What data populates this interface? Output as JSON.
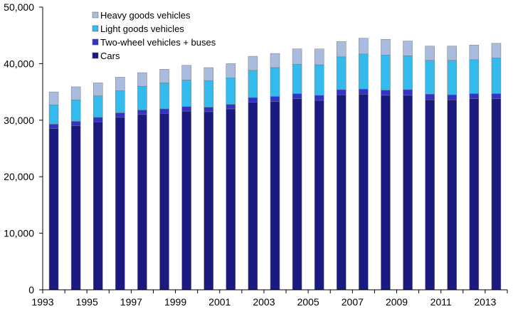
{
  "chart_data": {
    "type": "bar",
    "stacked": true,
    "title": "",
    "xlabel": "",
    "ylabel": "",
    "ylim": [
      0,
      50000
    ],
    "yticks": [
      0,
      10000,
      20000,
      30000,
      40000,
      50000
    ],
    "ytick_labels": [
      "0",
      "10,000",
      "20,000",
      "30,000",
      "40,000",
      "50,000"
    ],
    "categories": [
      "1993",
      "1994",
      "1995",
      "1996",
      "1997",
      "1998",
      "1999",
      "2000",
      "2001",
      "2002",
      "2003",
      "2004",
      "2005",
      "2006",
      "2007",
      "2008",
      "2009",
      "2010",
      "2011",
      "2012",
      "2013"
    ],
    "xtick_labels": [
      "1993",
      "",
      "1995",
      "",
      "1997",
      "",
      "1999",
      "",
      "2001",
      "",
      "2003",
      "",
      "2005",
      "",
      "2007",
      "",
      "2009",
      "",
      "2011",
      "",
      "2013"
    ],
    "legend_position": "top-left",
    "series": [
      {
        "name": "Cars",
        "color": "#1a1a80",
        "values": [
          28500,
          29000,
          29700,
          30500,
          31000,
          31200,
          31600,
          31500,
          32000,
          33200,
          33300,
          33800,
          33500,
          34500,
          34600,
          34400,
          34400,
          33600,
          33600,
          33800,
          33800
        ]
      },
      {
        "name": "Two-wheel vehicles + buses",
        "color": "#3333cc",
        "values": [
          800,
          800,
          800,
          800,
          800,
          800,
          800,
          800,
          800,
          800,
          900,
          900,
          900,
          900,
          900,
          900,
          1000,
          1000,
          900,
          900,
          900
        ]
      },
      {
        "name": "Light goods vehicles",
        "color": "#33bbee",
        "values": [
          3400,
          3800,
          3800,
          3900,
          4200,
          4600,
          4700,
          4700,
          4700,
          4800,
          5100,
          5200,
          5400,
          5800,
          6200,
          6200,
          6000,
          6000,
          6100,
          6000,
          6300
        ]
      },
      {
        "name": "Heavy goods vehicles",
        "color": "#aabbe0",
        "values": [
          2300,
          2300,
          2300,
          2400,
          2400,
          2400,
          2600,
          2300,
          2500,
          2500,
          2500,
          2700,
          2800,
          2700,
          2800,
          2800,
          2600,
          2500,
          2500,
          2600,
          2600
        ]
      }
    ]
  }
}
